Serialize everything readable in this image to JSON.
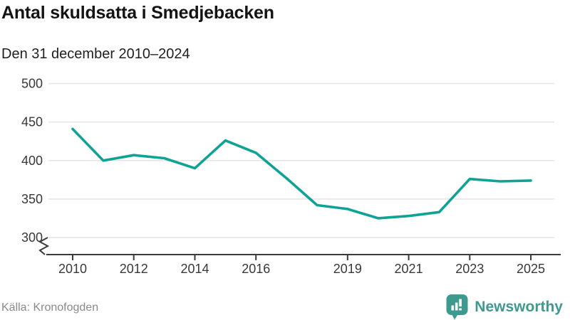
{
  "header": {
    "title": "Antal skuldsatta i Smedjebacken",
    "subtitle": "Den 31 december 2010–2024"
  },
  "footer": {
    "source": "Källa: Kronofogden",
    "brand": "Newsworthy",
    "brand_icon": "newsworthy-speech-bubble-bar-chart-icon"
  },
  "colors": {
    "line": "#0fa396",
    "brand_teal": "#3e998e",
    "grid": "#e4e4e4",
    "axis": "#3b3b3b",
    "axis_text": "#383838",
    "title_text": "#141414",
    "muted_text": "#8a8a8a",
    "background": "#ffffff"
  },
  "chart_data": {
    "type": "line",
    "title": "Antal skuldsatta i Smedjebacken",
    "subtitle": "Den 31 december 2010–2024",
    "source": "Källa: Kronofogden",
    "x": [
      2010,
      2011,
      2012,
      2013,
      2014,
      2015,
      2016,
      2017,
      2018,
      2019,
      2020,
      2021,
      2022,
      2023,
      2024,
      2025
    ],
    "values": [
      441,
      400,
      407,
      403,
      390,
      426,
      410,
      377,
      342,
      337,
      325,
      328,
      333,
      376,
      373,
      374
    ],
    "series_name": "Antal skuldsatta",
    "y_ticks": [
      500,
      450,
      400,
      350,
      300
    ],
    "x_tick_labels": [
      "2010",
      "2012",
      "2014",
      "2016",
      "2019",
      "2021",
      "2023",
      "2025"
    ],
    "ylim": [
      300,
      500
    ],
    "axis_break": true,
    "grid": "horizontal",
    "legend": "none"
  }
}
